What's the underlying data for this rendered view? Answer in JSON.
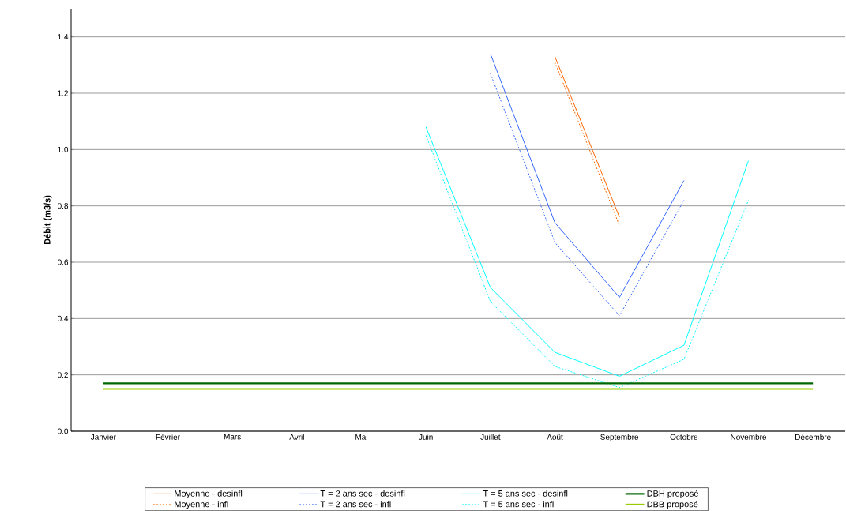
{
  "chart_data": {
    "type": "line",
    "ylabel": "Débit (m3/s)",
    "categories": [
      "Janvier",
      "Février",
      "Mars",
      "Avril",
      "Mai",
      "Juin",
      "Juillet",
      "Août",
      "Septembre",
      "Octobre",
      "Novembre",
      "Décembre"
    ],
    "ylim": [
      0,
      1.5
    ],
    "yticks": [
      {
        "value": 0,
        "label": "0.0"
      },
      {
        "value": 0.2,
        "label": "0.2"
      },
      {
        "value": 0.4,
        "label": "0.4"
      },
      {
        "value": 0.6,
        "label": "0.6"
      },
      {
        "value": 0.8,
        "label": "0.8"
      },
      {
        "value": 1.0,
        "label": "1.0"
      },
      {
        "value": 1.2,
        "label": "1.2"
      },
      {
        "value": 1.4,
        "label": "1.4"
      }
    ],
    "grid": "y",
    "legend": "bottom",
    "marker": "none",
    "series": [
      {
        "name": "Moyenne - desinfl",
        "color": "#ff6600",
        "line_style": "solid",
        "values": [
          null,
          null,
          null,
          null,
          null,
          null,
          null,
          1.33,
          0.76,
          null,
          null,
          null
        ]
      },
      {
        "name": "Moyenne - infl",
        "color": "#ff6600",
        "line_style": "dotted",
        "values": [
          null,
          null,
          null,
          null,
          null,
          null,
          null,
          1.31,
          0.73,
          null,
          null,
          null
        ]
      },
      {
        "name": "T = 2 ans sec - desinfl",
        "color": "#3366ff",
        "line_style": "solid",
        "values": [
          null,
          null,
          null,
          null,
          null,
          null,
          1.34,
          0.74,
          0.475,
          0.89,
          null,
          null
        ]
      },
      {
        "name": "T = 2 ans sec - infl",
        "color": "#3366ff",
        "line_style": "dotted",
        "values": [
          null,
          null,
          null,
          null,
          null,
          null,
          1.27,
          0.67,
          0.41,
          0.82,
          null,
          null
        ]
      },
      {
        "name": "T = 5 ans sec - desinfl",
        "color": "#00ffff",
        "line_style": "solid",
        "values": [
          null,
          null,
          null,
          null,
          null,
          1.08,
          0.51,
          0.28,
          0.195,
          0.305,
          0.96,
          null
        ]
      },
      {
        "name": "T = 5 ans sec - infl",
        "color": "#00ffff",
        "line_style": "dotted",
        "values": [
          null,
          null,
          null,
          null,
          null,
          1.05,
          0.46,
          0.23,
          0.155,
          0.255,
          0.82,
          null
        ]
      },
      {
        "name": "DBH proposé",
        "color": "#006600",
        "line_style": "solid",
        "values": [
          0.17,
          0.17,
          0.17,
          0.17,
          0.17,
          0.17,
          0.17,
          0.17,
          0.17,
          0.17,
          0.17,
          0.17
        ]
      },
      {
        "name": "DBB proposé",
        "color": "#99cc00",
        "line_style": "solid",
        "values": [
          0.15,
          0.15,
          0.15,
          0.15,
          0.15,
          0.15,
          0.15,
          0.15,
          0.15,
          0.15,
          0.15,
          0.15
        ]
      }
    ]
  }
}
